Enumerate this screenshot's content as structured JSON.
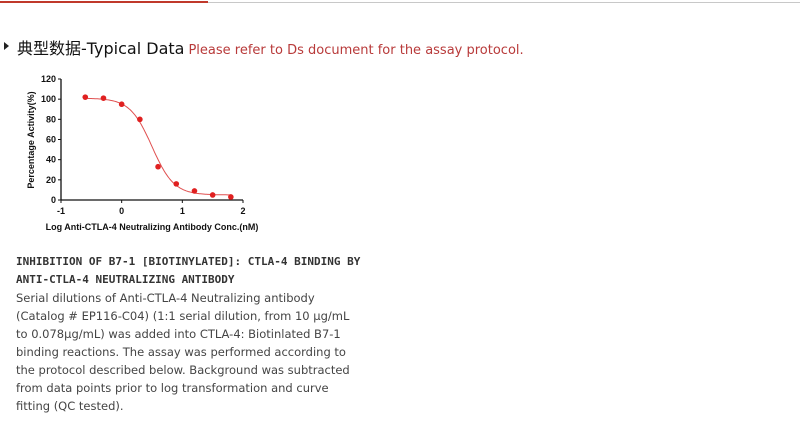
{
  "heading": {
    "title": "典型数据-Typical Data",
    "note": "Please refer to Ds document for the assay protocol."
  },
  "chart_data": {
    "type": "scatter",
    "xlabel": "Log Anti-CTLA-4 Neutralizing Antibody Conc.(nM)",
    "ylabel": "Percentage Activity(%)",
    "xlim": [
      -1,
      2
    ],
    "ylim": [
      0,
      120
    ],
    "xticks": [
      -1,
      0,
      1,
      2
    ],
    "yticks": [
      0,
      20,
      40,
      60,
      80,
      100,
      120
    ],
    "points": [
      {
        "x": -0.6,
        "y": 102
      },
      {
        "x": -0.3,
        "y": 101
      },
      {
        "x": 0.0,
        "y": 95
      },
      {
        "x": 0.3,
        "y": 80
      },
      {
        "x": 0.6,
        "y": 33
      },
      {
        "x": 0.9,
        "y": 16
      },
      {
        "x": 1.2,
        "y": 9
      },
      {
        "x": 1.5,
        "y": 5
      },
      {
        "x": 1.8,
        "y": 3
      }
    ],
    "fit": {
      "model": "4PL",
      "top": 101,
      "bottom": 5,
      "logIC50": 0.5,
      "hill": 2.4
    },
    "grid": false,
    "color": "#e02020"
  },
  "description": {
    "title": "INHIBITION OF B7-1 [BIOTINYLATED]: CTLA-4 BINDING BY ANTI-CTLA-4 NEUTRALIZING ANTIBODY",
    "body": "Serial dilutions of Anti-CTLA-4 Neutralizing antibody (Catalog # EP116-C04) (1:1 serial dilution, from 10 μg/mL to 0.078μg/mL) was added into CTLA-4: Biotinlated B7-1 binding reactions. The assay was performed according to the protocol described below. Background was subtracted from data points prior to log transformation and curve fitting (QC tested)."
  }
}
